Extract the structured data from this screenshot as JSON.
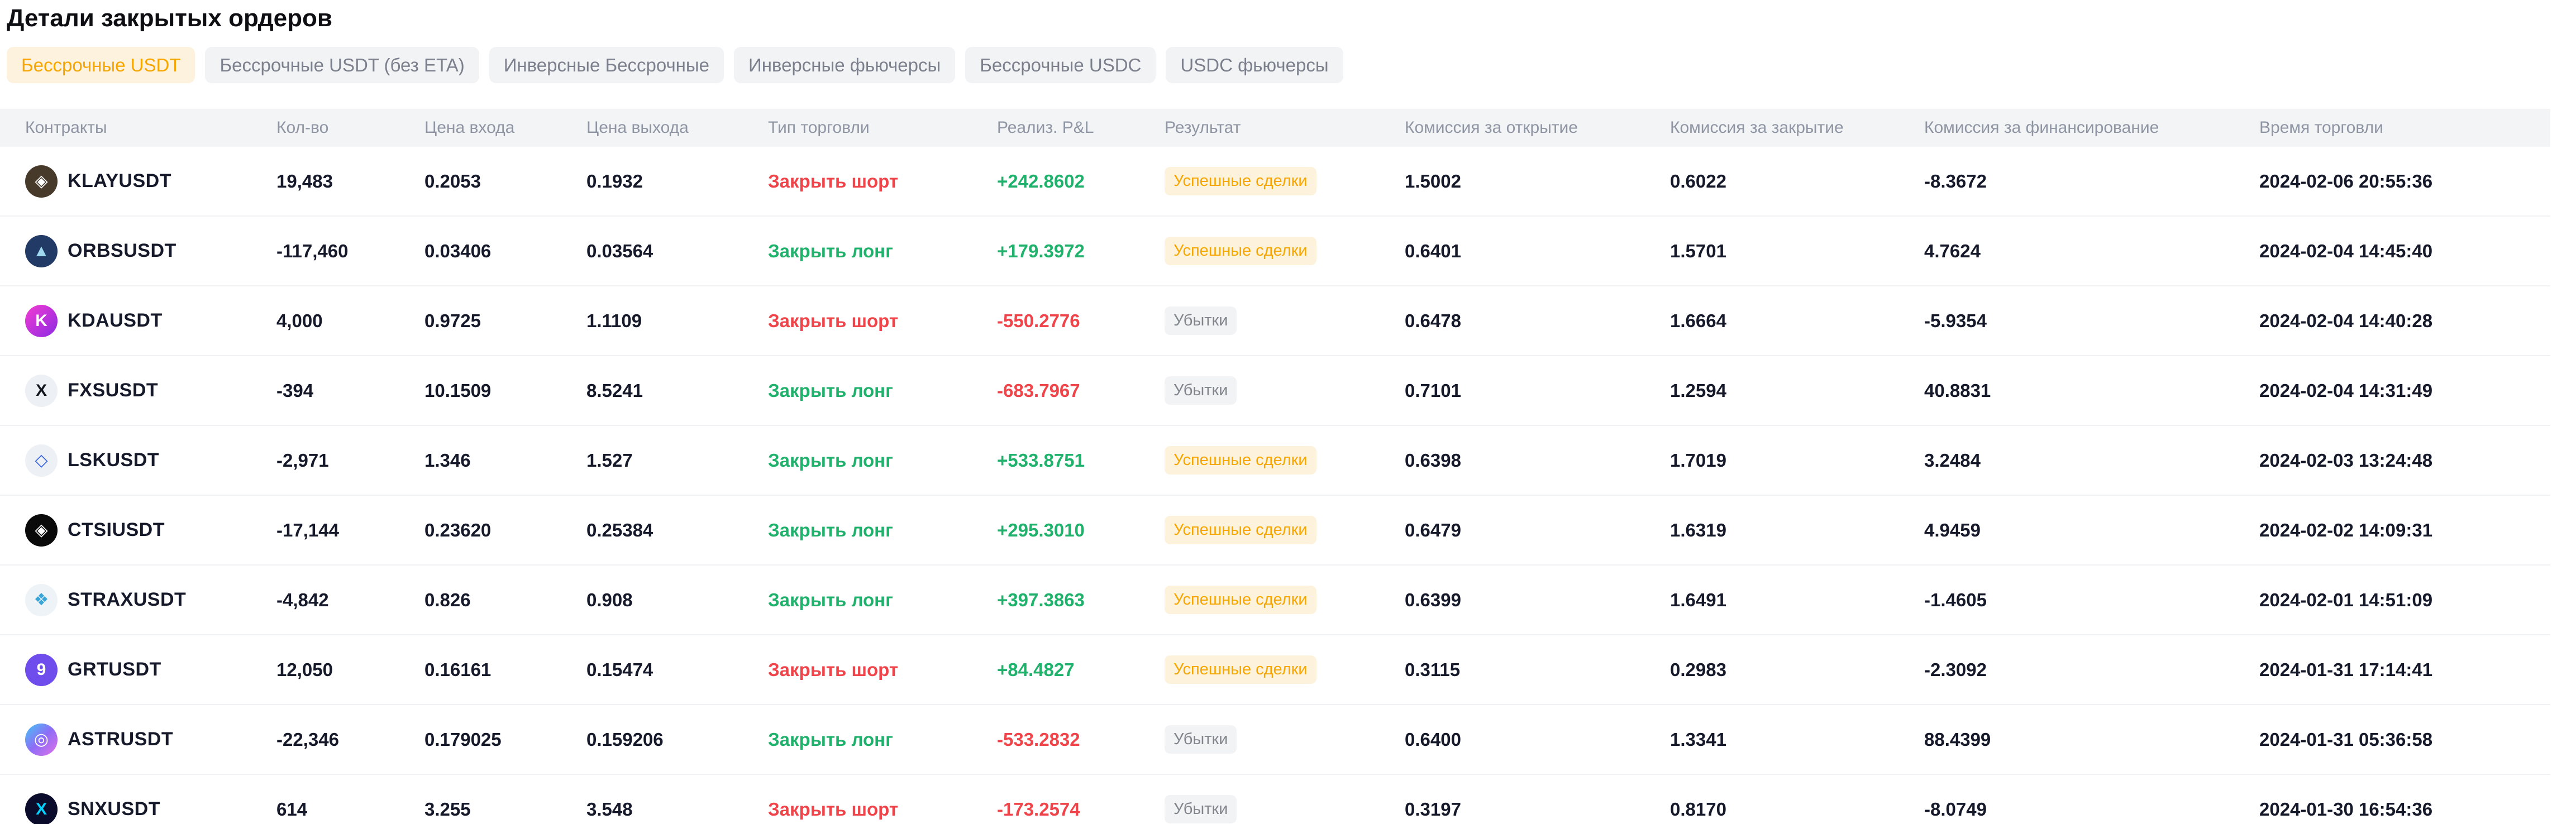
{
  "title": "Детали закрытых ордеров",
  "tabs": [
    {
      "label": "Бессрочные USDT",
      "active": true
    },
    {
      "label": "Бессрочные USDT (без ETA)",
      "active": false
    },
    {
      "label": "Инверсные Бессрочные",
      "active": false
    },
    {
      "label": "Инверсные фьючерсы",
      "active": false
    },
    {
      "label": "Бессрочные USDC",
      "active": false
    },
    {
      "label": "USDC фьючерсы",
      "active": false
    }
  ],
  "colors": {
    "accent_orange": "#f7a600",
    "positive_green": "#20b26c",
    "negative_red": "#ef454a",
    "badge_win_bg": "#fdf2dc",
    "badge_loss_bg": "#f2f3f5",
    "header_bg": "#f2f4f6"
  },
  "table": {
    "columns": [
      "Контракты",
      "Кол-во",
      "Цена входа",
      "Цена выхода",
      "Тип торговли",
      "Реализ. P&L",
      "Результат",
      "Комиссия за открытие",
      "Комиссия за закрытие",
      "Комиссия за финансирование",
      "Время торговли"
    ],
    "rows": [
      {
        "symbol": "KLAYUSDT",
        "icon": {
          "bg": "#473a2b",
          "fg": "#ffffff",
          "glyph": "◈"
        },
        "qty": "19,483",
        "entry": "0.2053",
        "exit": "0.1932",
        "trade_type": "Закрыть шорт",
        "trade_type_color": "red",
        "pnl": "+242.8602",
        "pnl_color": "green",
        "result": "Успешные сделки",
        "result_variant": "win",
        "open_fee": "1.5002",
        "close_fee": "0.6022",
        "funding_fee": "-8.3672",
        "time": "2024-02-06 20:55:36"
      },
      {
        "symbol": "ORBSUSDT",
        "icon": {
          "bg": "#223a66",
          "fg": "#9fd8ef",
          "glyph": "▲"
        },
        "qty": "-117,460",
        "entry": "0.03406",
        "exit": "0.03564",
        "trade_type": "Закрыть лонг",
        "trade_type_color": "green",
        "pnl": "+179.3972",
        "pnl_color": "green",
        "result": "Успешные сделки",
        "result_variant": "win",
        "open_fee": "0.6401",
        "close_fee": "1.5701",
        "funding_fee": "4.7624",
        "time": "2024-02-04 14:45:40"
      },
      {
        "symbol": "KDAUSDT",
        "icon": {
          "bg": "linear-gradient(135deg,#f43bd2,#8a2be2)",
          "fg": "#ffffff",
          "glyph": "K"
        },
        "qty": "4,000",
        "entry": "0.9725",
        "exit": "1.1109",
        "trade_type": "Закрыть шорт",
        "trade_type_color": "red",
        "pnl": "-550.2776",
        "pnl_color": "red",
        "result": "Убытки",
        "result_variant": "loss",
        "open_fee": "0.6478",
        "close_fee": "1.6664",
        "funding_fee": "-5.9354",
        "time": "2024-02-04 14:40:28"
      },
      {
        "symbol": "FXSUSDT",
        "icon": {
          "bg": "#edf0f4",
          "fg": "#14161f",
          "glyph": "X"
        },
        "qty": "-394",
        "entry": "10.1509",
        "exit": "8.5241",
        "trade_type": "Закрыть лонг",
        "trade_type_color": "green",
        "pnl": "-683.7967",
        "pnl_color": "red",
        "result": "Убытки",
        "result_variant": "loss",
        "open_fee": "0.7101",
        "close_fee": "1.2594",
        "funding_fee": "40.8831",
        "time": "2024-02-04 14:31:49"
      },
      {
        "symbol": "LSKUSDT",
        "icon": {
          "bg": "#edf0f4",
          "fg": "#2c5ce5",
          "glyph": "◇"
        },
        "qty": "-2,971",
        "entry": "1.346",
        "exit": "1.527",
        "trade_type": "Закрыть лонг",
        "trade_type_color": "green",
        "pnl": "+533.8751",
        "pnl_color": "green",
        "result": "Успешные сделки",
        "result_variant": "win",
        "open_fee": "0.6398",
        "close_fee": "1.7019",
        "funding_fee": "3.2484",
        "time": "2024-02-03 13:24:48"
      },
      {
        "symbol": "CTSIUSDT",
        "icon": {
          "bg": "#0a0a0a",
          "fg": "#ffffff",
          "glyph": "◈"
        },
        "qty": "-17,144",
        "entry": "0.23620",
        "exit": "0.25384",
        "trade_type": "Закрыть лонг",
        "trade_type_color": "green",
        "pnl": "+295.3010",
        "pnl_color": "green",
        "result": "Успешные сделки",
        "result_variant": "win",
        "open_fee": "0.6479",
        "close_fee": "1.6319",
        "funding_fee": "4.9459",
        "time": "2024-02-02 14:09:31"
      },
      {
        "symbol": "STRAXUSDT",
        "icon": {
          "bg": "#eef3f7",
          "fg": "#37a5d8",
          "glyph": "❖"
        },
        "qty": "-4,842",
        "entry": "0.826",
        "exit": "0.908",
        "trade_type": "Закрыть лонг",
        "trade_type_color": "green",
        "pnl": "+397.3863",
        "pnl_color": "green",
        "result": "Успешные сделки",
        "result_variant": "win",
        "open_fee": "0.6399",
        "close_fee": "1.6491",
        "funding_fee": "-1.4605",
        "time": "2024-02-01 14:51:09"
      },
      {
        "symbol": "GRTUSDT",
        "icon": {
          "bg": "#6f4cec",
          "fg": "#ffffff",
          "glyph": "9"
        },
        "qty": "12,050",
        "entry": "0.16161",
        "exit": "0.15474",
        "trade_type": "Закрыть шорт",
        "trade_type_color": "red",
        "pnl": "+84.4827",
        "pnl_color": "green",
        "result": "Успешные сделки",
        "result_variant": "win",
        "open_fee": "0.3115",
        "close_fee": "0.2983",
        "funding_fee": "-2.3092",
        "time": "2024-01-31 17:14:41"
      },
      {
        "symbol": "ASTRUSDT",
        "icon": {
          "bg": "linear-gradient(135deg,#41c8f5,#8f6cf6,#e173e8)",
          "fg": "#ffffff",
          "glyph": "◎"
        },
        "qty": "-22,346",
        "entry": "0.179025",
        "exit": "0.159206",
        "trade_type": "Закрыть лонг",
        "trade_type_color": "green",
        "pnl": "-533.2832",
        "pnl_color": "red",
        "result": "Убытки",
        "result_variant": "loss",
        "open_fee": "0.6400",
        "close_fee": "1.3341",
        "funding_fee": "88.4399",
        "time": "2024-01-31 05:36:58"
      },
      {
        "symbol": "SNXUSDT",
        "icon": {
          "bg": "#0b0b2b",
          "fg": "#00d1ff",
          "glyph": "X"
        },
        "qty": "614",
        "entry": "3.255",
        "exit": "3.548",
        "trade_type": "Закрыть шорт",
        "trade_type_color": "red",
        "pnl": "-173.2574",
        "pnl_color": "red",
        "result": "Убытки",
        "result_variant": "loss",
        "open_fee": "0.3197",
        "close_fee": "0.8170",
        "funding_fee": "-8.0749",
        "time": "2024-01-30 16:54:36"
      }
    ]
  }
}
